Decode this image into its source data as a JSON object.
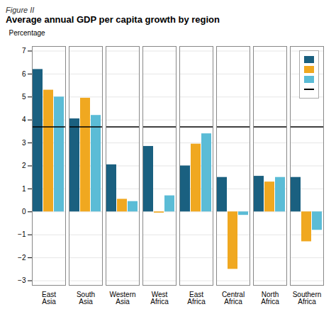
{
  "chart_data": {
    "type": "bar",
    "title": "Average annual GDP per capita growth by region",
    "subtitle": "Figure II",
    "ylabel": "Percentage",
    "categories": [
      "East\nAsia",
      "South\nAsia",
      "Western\nAsia",
      "West\nAfrica",
      "East\nAfrica",
      "Central\nAfrica",
      "North\nAfrica",
      "Southern\nAfrica"
    ],
    "series": [
      {
        "color": "#1a6080",
        "values": [
          6.2,
          4.05,
          2.05,
          2.85,
          2.0,
          1.5,
          1.55,
          1.5
        ]
      },
      {
        "color": "#f0a820",
        "values": [
          5.3,
          4.95,
          0.55,
          -0.05,
          2.95,
          -2.5,
          1.3,
          -1.3
        ]
      },
      {
        "color": "#5bbcd6",
        "values": [
          5.0,
          4.2,
          0.45,
          0.7,
          3.4,
          -0.15,
          1.5,
          -0.8
        ]
      }
    ],
    "reference_line": {
      "y": 3.7,
      "color": "black"
    },
    "ylim": [
      -3.2,
      7.2
    ],
    "yticks": [
      -3,
      -2,
      -1,
      0,
      1,
      2,
      3,
      4,
      5,
      6,
      7
    ],
    "grid": true,
    "legend": "upper right"
  }
}
